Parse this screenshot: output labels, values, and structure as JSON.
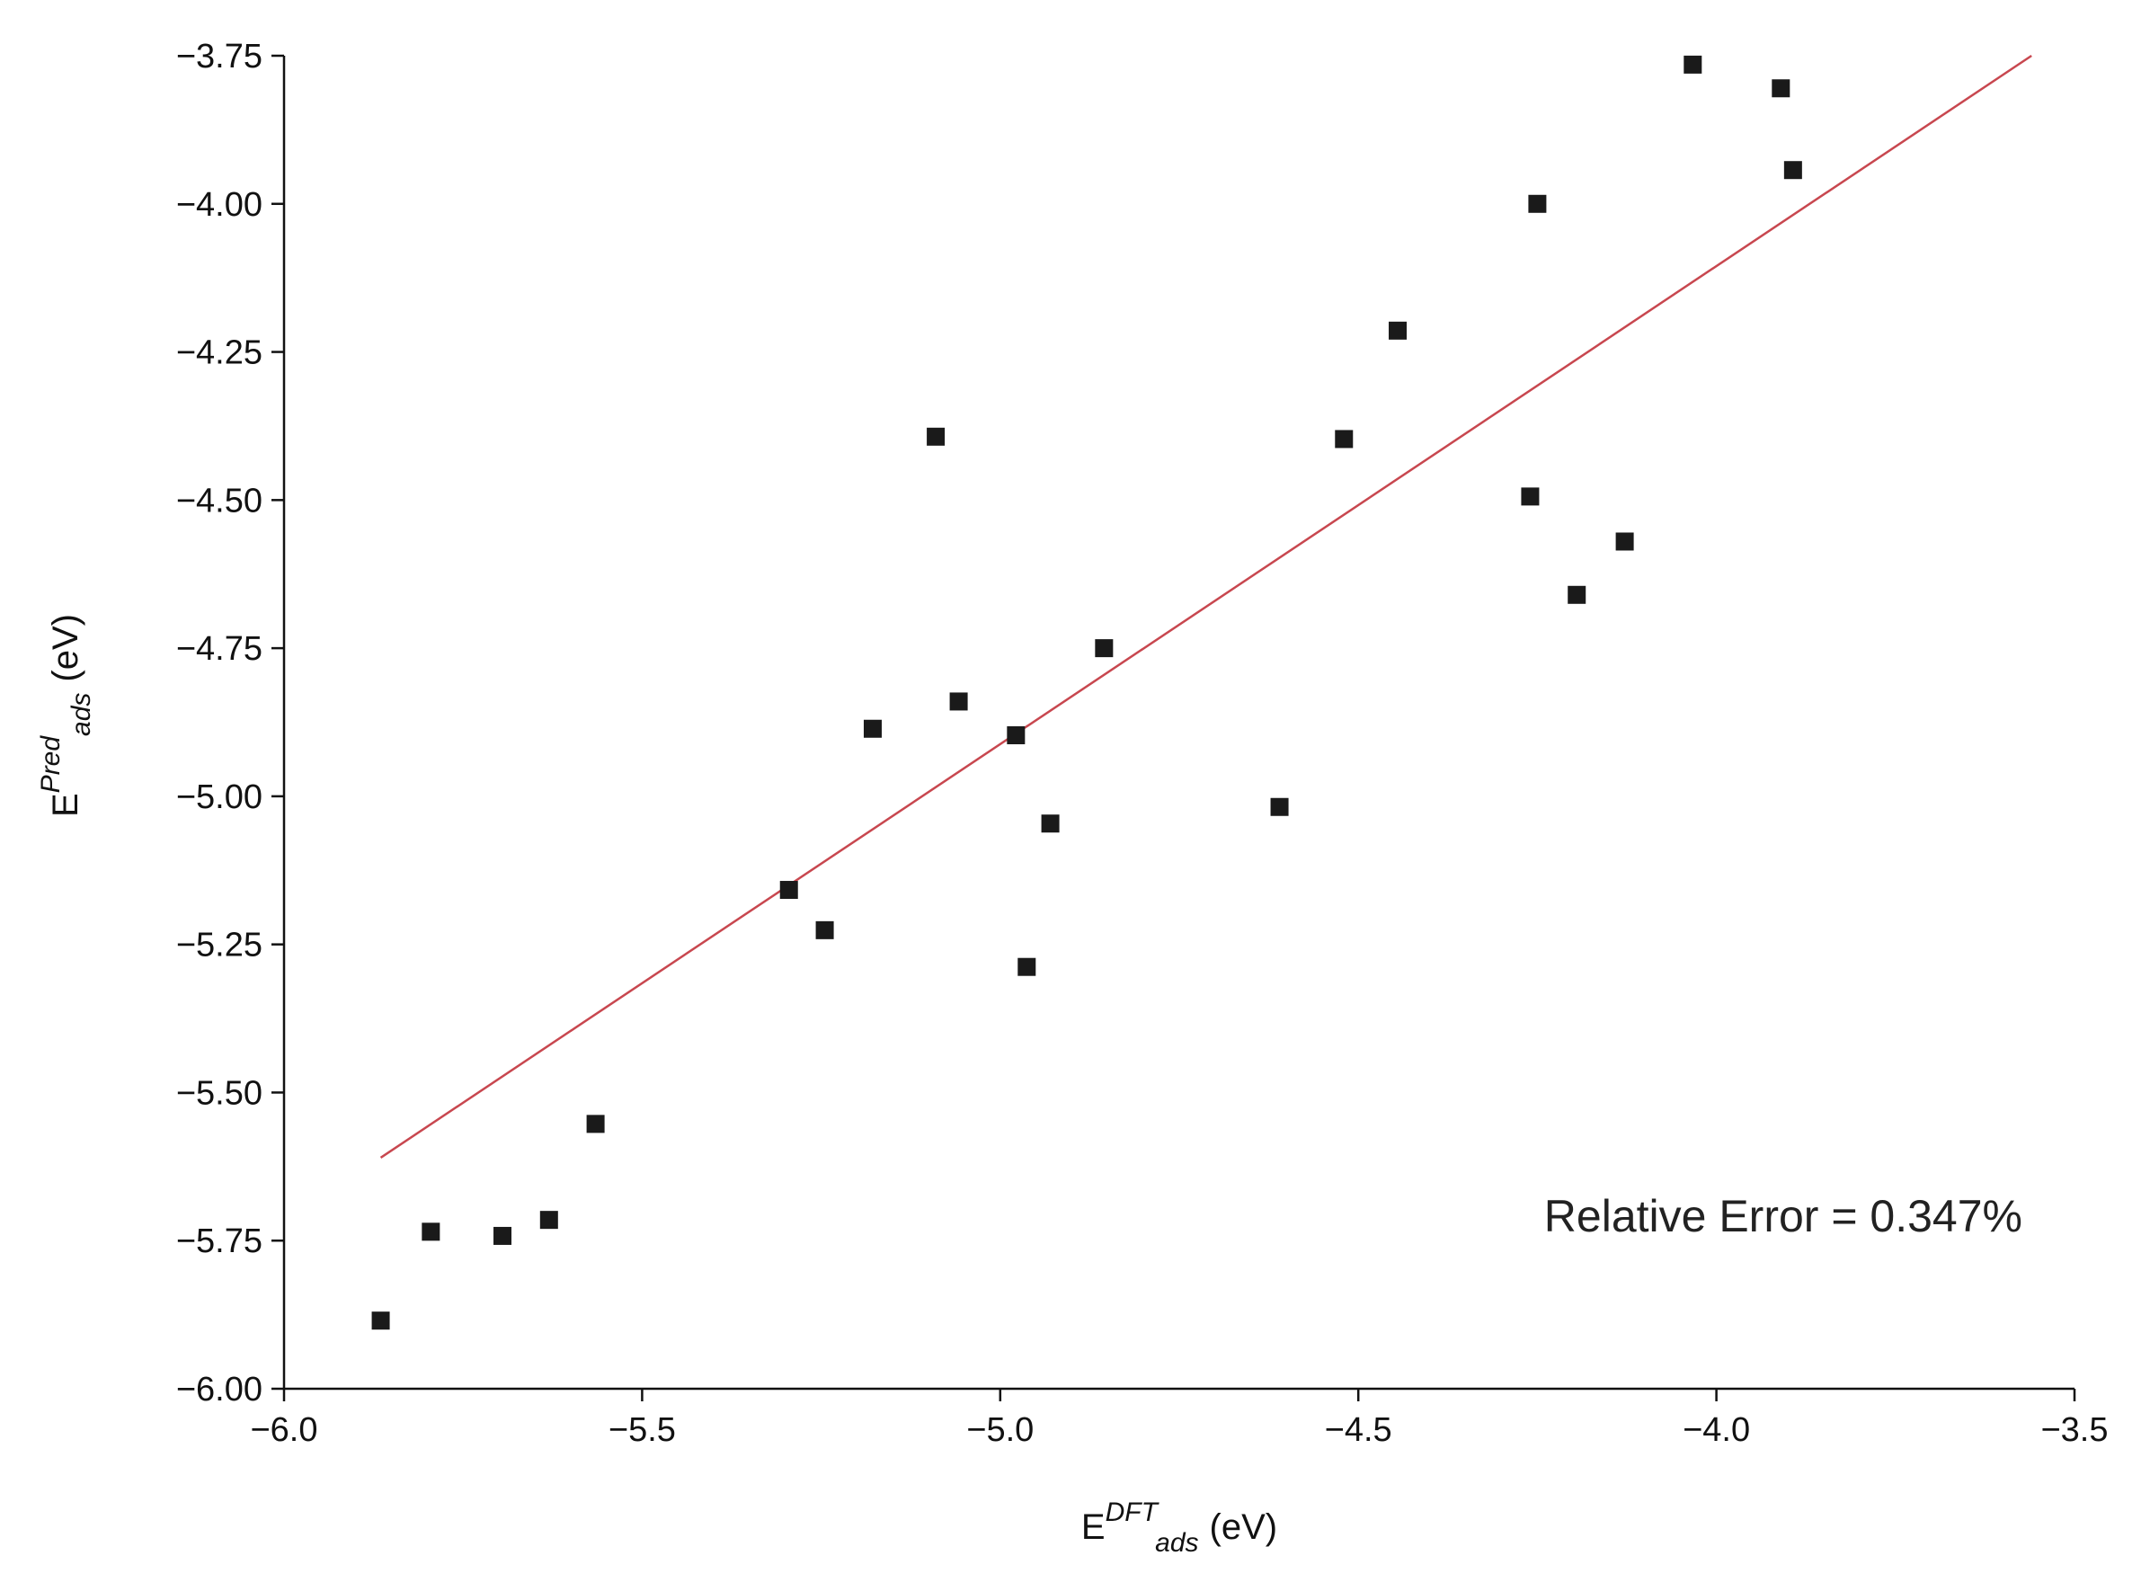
{
  "chart_data": {
    "type": "scatter",
    "title": "",
    "xlabel": {
      "base": "E",
      "sup": "DFT",
      "sub": "ads",
      "unit": "(eV)"
    },
    "ylabel": {
      "base": "E",
      "sup": "Pred",
      "sub": "ads",
      "unit": "(eV)"
    },
    "xlim": [
      -6.0,
      -3.5
    ],
    "ylim": [
      -6.0,
      -3.75
    ],
    "xticks": [
      -6.0,
      -5.5,
      -5.0,
      -4.5,
      -4.0,
      -3.5
    ],
    "xtick_labels": [
      "−6.0",
      "−5.5",
      "−5.0",
      "−4.5",
      "−4.0",
      "−3.5"
    ],
    "yticks": [
      -3.75,
      -4.0,
      -4.25,
      -4.5,
      -4.75,
      -5.0,
      -5.25,
      -5.5,
      -5.75,
      -6.0
    ],
    "ytick_labels": [
      "−3.75",
      "−4.00",
      "−4.25",
      "−4.50",
      "−4.75",
      "−5.00",
      "−5.25",
      "−5.50",
      "−5.75",
      "−6.00"
    ],
    "grid": false,
    "colors": {
      "points": "#1a1a1a",
      "fit_line": "#c8474f"
    },
    "points": [
      {
        "x": -5.865,
        "y": -5.885
      },
      {
        "x": -5.795,
        "y": -5.735
      },
      {
        "x": -5.695,
        "y": -5.742
      },
      {
        "x": -5.63,
        "y": -5.715
      },
      {
        "x": -5.565,
        "y": -5.553
      },
      {
        "x": -5.295,
        "y": -5.158
      },
      {
        "x": -5.245,
        "y": -5.226
      },
      {
        "x": -5.178,
        "y": -4.886
      },
      {
        "x": -5.09,
        "y": -4.393
      },
      {
        "x": -5.058,
        "y": -4.84
      },
      {
        "x": -4.978,
        "y": -4.897
      },
      {
        "x": -4.963,
        "y": -5.288
      },
      {
        "x": -4.93,
        "y": -5.046
      },
      {
        "x": -4.855,
        "y": -4.75
      },
      {
        "x": -4.61,
        "y": -5.018
      },
      {
        "x": -4.52,
        "y": -4.397
      },
      {
        "x": -4.445,
        "y": -4.214
      },
      {
        "x": -4.26,
        "y": -4.494
      },
      {
        "x": -4.25,
        "y": -4.0
      },
      {
        "x": -4.195,
        "y": -4.66
      },
      {
        "x": -4.128,
        "y": -4.57
      },
      {
        "x": -4.033,
        "y": -3.765
      },
      {
        "x": -3.91,
        "y": -3.805
      },
      {
        "x": -3.893,
        "y": -3.943
      }
    ],
    "fit_line": {
      "x": [
        -5.865,
        -3.56
      ],
      "y": [
        -5.61,
        -3.75
      ]
    },
    "annotation": "Relative Error = 0.347%"
  }
}
